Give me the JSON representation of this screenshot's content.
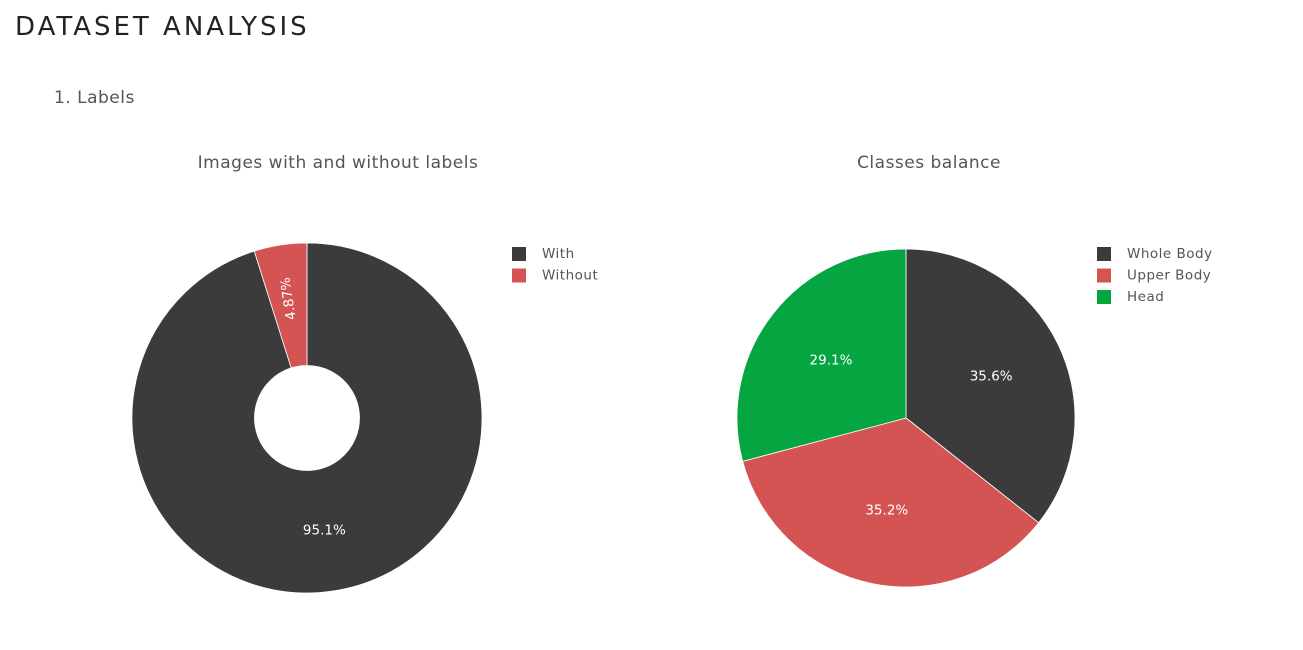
{
  "page": {
    "title": "DATASET ANALYSIS",
    "section": "1. Labels"
  },
  "chart_data": [
    {
      "type": "pie",
      "hole": 0.3,
      "title": "Images with and without labels",
      "categories": [
        "With",
        "Without"
      ],
      "values": [
        95.1,
        4.87
      ],
      "labels": [
        "95.1%",
        "4.87%"
      ],
      "colors": [
        "#3b3b3b",
        "#d45453"
      ],
      "legend": "top-right"
    },
    {
      "type": "pie",
      "hole": 0,
      "title": "Classes balance",
      "categories": [
        "Whole Body",
        "Upper Body",
        "Head"
      ],
      "values": [
        35.6,
        35.2,
        29.1
      ],
      "labels": [
        "35.6%",
        "35.2%",
        "29.1%"
      ],
      "colors": [
        "#3b3b3b",
        "#d45453",
        "#05a642"
      ],
      "legend": "top-right"
    }
  ]
}
